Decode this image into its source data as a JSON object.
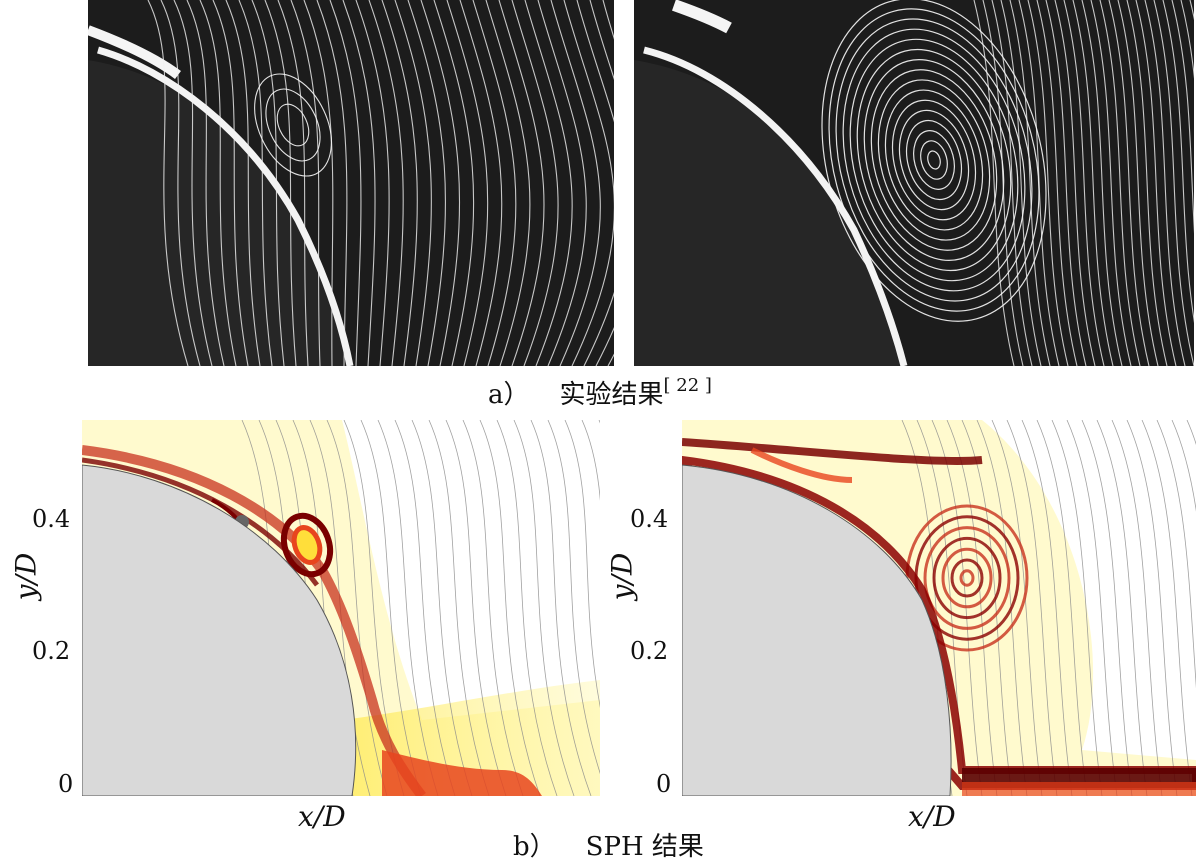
{
  "figure": {
    "caption_a_label": "a）",
    "caption_a_text": "实验结果",
    "caption_a_citation": "[ 22 ]",
    "caption_b_label": "b）",
    "caption_b_text": "SPH 结果"
  },
  "sph_axes": {
    "ylabel": "y/D",
    "xlabel": "x/D",
    "yticks": [
      "0.4",
      "0.2",
      "0"
    ]
  },
  "colors": {
    "cylinder": "#d9d9d9",
    "vorticity_high": "#8b0000",
    "vorticity_mid": "#e8451e",
    "vorticity_low": "#ffee55",
    "streamline": "#8a8a8a",
    "exp_background": "#1c1c1c",
    "exp_streak": "#f2f2f2"
  }
}
